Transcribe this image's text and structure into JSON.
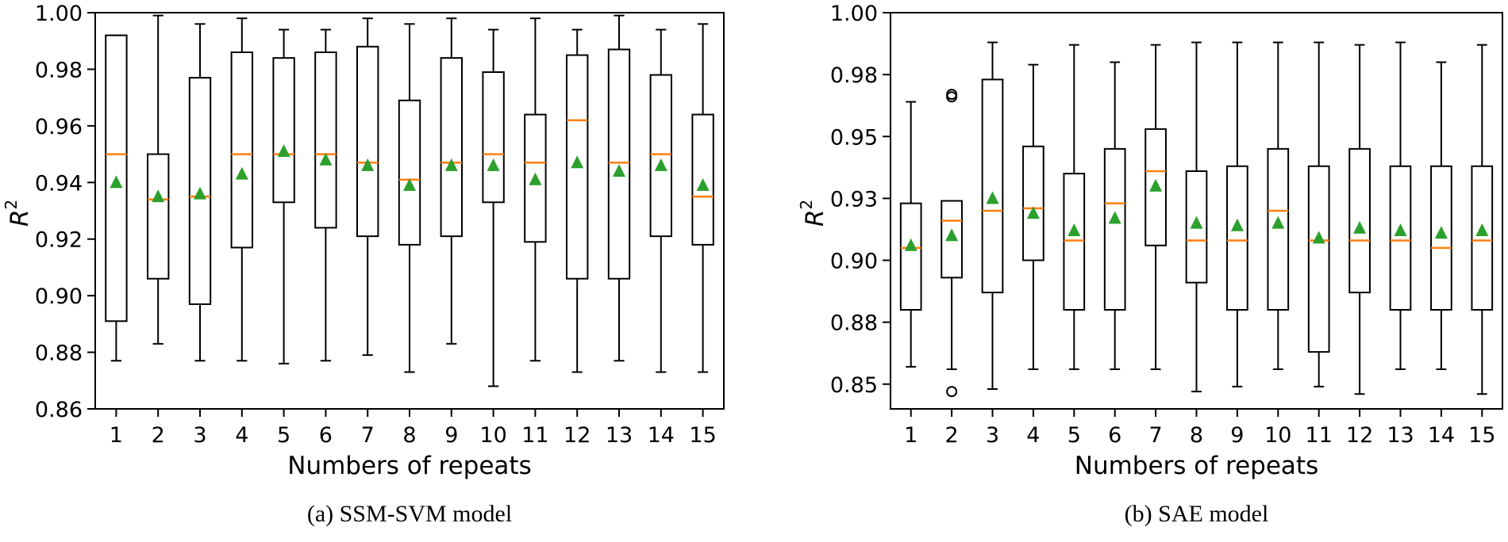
{
  "chart_data": [
    {
      "type": "box",
      "caption": "(a) SSM-SVM model",
      "xlabel": "Numbers of repeats",
      "ylabel_base": "R",
      "ylabel_sup": "2",
      "ylim": [
        0.86,
        1.0
      ],
      "yticks": [
        "0.86",
        "0.88",
        "0.90",
        "0.92",
        "0.94",
        "0.96",
        "0.98",
        "1.00"
      ],
      "categories": [
        "1",
        "2",
        "3",
        "4",
        "5",
        "6",
        "7",
        "8",
        "9",
        "10",
        "11",
        "12",
        "13",
        "14",
        "15"
      ],
      "boxes": [
        {
          "whislo": 0.877,
          "q1": 0.891,
          "med": 0.95,
          "q3": 0.992,
          "whishi": 0.992,
          "mean": 0.94,
          "fliers": []
        },
        {
          "whislo": 0.883,
          "q1": 0.906,
          "med": 0.934,
          "q3": 0.95,
          "whishi": 0.999,
          "mean": 0.935,
          "fliers": []
        },
        {
          "whislo": 0.877,
          "q1": 0.897,
          "med": 0.935,
          "q3": 0.977,
          "whishi": 0.996,
          "mean": 0.936,
          "fliers": []
        },
        {
          "whislo": 0.877,
          "q1": 0.917,
          "med": 0.95,
          "q3": 0.986,
          "whishi": 0.998,
          "mean": 0.943,
          "fliers": []
        },
        {
          "whislo": 0.876,
          "q1": 0.933,
          "med": 0.95,
          "q3": 0.984,
          "whishi": 0.994,
          "mean": 0.951,
          "fliers": []
        },
        {
          "whislo": 0.877,
          "q1": 0.924,
          "med": 0.95,
          "q3": 0.986,
          "whishi": 0.994,
          "mean": 0.948,
          "fliers": []
        },
        {
          "whislo": 0.879,
          "q1": 0.921,
          "med": 0.947,
          "q3": 0.988,
          "whishi": 0.998,
          "mean": 0.946,
          "fliers": []
        },
        {
          "whislo": 0.873,
          "q1": 0.918,
          "med": 0.941,
          "q3": 0.969,
          "whishi": 0.996,
          "mean": 0.939,
          "fliers": []
        },
        {
          "whislo": 0.883,
          "q1": 0.921,
          "med": 0.947,
          "q3": 0.984,
          "whishi": 0.998,
          "mean": 0.946,
          "fliers": []
        },
        {
          "whislo": 0.868,
          "q1": 0.933,
          "med": 0.95,
          "q3": 0.979,
          "whishi": 0.994,
          "mean": 0.946,
          "fliers": []
        },
        {
          "whislo": 0.877,
          "q1": 0.919,
          "med": 0.947,
          "q3": 0.964,
          "whishi": 0.998,
          "mean": 0.941,
          "fliers": []
        },
        {
          "whislo": 0.873,
          "q1": 0.906,
          "med": 0.962,
          "q3": 0.985,
          "whishi": 0.994,
          "mean": 0.947,
          "fliers": []
        },
        {
          "whislo": 0.877,
          "q1": 0.906,
          "med": 0.947,
          "q3": 0.987,
          "whishi": 0.999,
          "mean": 0.944,
          "fliers": []
        },
        {
          "whislo": 0.873,
          "q1": 0.921,
          "med": 0.95,
          "q3": 0.978,
          "whishi": 0.994,
          "mean": 0.946,
          "fliers": []
        },
        {
          "whislo": 0.873,
          "q1": 0.918,
          "med": 0.935,
          "q3": 0.964,
          "whishi": 0.996,
          "mean": 0.939,
          "fliers": []
        }
      ]
    },
    {
      "type": "box",
      "caption": "(b) SAE model",
      "xlabel": "Numbers of repeats",
      "ylabel_base": "R",
      "ylabel_sup": "2",
      "ylim": [
        0.84,
        1.0
      ],
      "yticks": [
        "0.85",
        "0.88",
        "0.90",
        "0.93",
        "0.95",
        "0.98",
        "1.00"
      ],
      "ytick_values": [
        0.85,
        0.875,
        0.9,
        0.925,
        0.95,
        0.975,
        1.0
      ],
      "categories": [
        "1",
        "2",
        "3",
        "4",
        "5",
        "6",
        "7",
        "8",
        "9",
        "10",
        "11",
        "12",
        "13",
        "14",
        "15"
      ],
      "boxes": [
        {
          "whislo": 0.857,
          "q1": 0.88,
          "med": 0.905,
          "q3": 0.923,
          "whishi": 0.964,
          "mean": 0.906,
          "fliers": []
        },
        {
          "whislo": 0.856,
          "q1": 0.893,
          "med": 0.916,
          "q3": 0.924,
          "whishi": 0.924,
          "mean": 0.91,
          "fliers": [
            0.967,
            0.966,
            0.847
          ]
        },
        {
          "whislo": 0.848,
          "q1": 0.887,
          "med": 0.92,
          "q3": 0.973,
          "whishi": 0.988,
          "mean": 0.925,
          "fliers": []
        },
        {
          "whislo": 0.856,
          "q1": 0.9,
          "med": 0.921,
          "q3": 0.946,
          "whishi": 0.979,
          "mean": 0.919,
          "fliers": []
        },
        {
          "whislo": 0.856,
          "q1": 0.88,
          "med": 0.908,
          "q3": 0.935,
          "whishi": 0.987,
          "mean": 0.912,
          "fliers": []
        },
        {
          "whislo": 0.856,
          "q1": 0.88,
          "med": 0.923,
          "q3": 0.945,
          "whishi": 0.98,
          "mean": 0.917,
          "fliers": []
        },
        {
          "whislo": 0.856,
          "q1": 0.906,
          "med": 0.936,
          "q3": 0.953,
          "whishi": 0.987,
          "mean": 0.93,
          "fliers": []
        },
        {
          "whislo": 0.847,
          "q1": 0.891,
          "med": 0.908,
          "q3": 0.936,
          "whishi": 0.988,
          "mean": 0.915,
          "fliers": []
        },
        {
          "whislo": 0.849,
          "q1": 0.88,
          "med": 0.908,
          "q3": 0.938,
          "whishi": 0.988,
          "mean": 0.914,
          "fliers": []
        },
        {
          "whislo": 0.856,
          "q1": 0.88,
          "med": 0.92,
          "q3": 0.945,
          "whishi": 0.988,
          "mean": 0.915,
          "fliers": []
        },
        {
          "whislo": 0.849,
          "q1": 0.863,
          "med": 0.908,
          "q3": 0.938,
          "whishi": 0.988,
          "mean": 0.909,
          "fliers": []
        },
        {
          "whislo": 0.846,
          "q1": 0.887,
          "med": 0.908,
          "q3": 0.945,
          "whishi": 0.987,
          "mean": 0.913,
          "fliers": []
        },
        {
          "whislo": 0.856,
          "q1": 0.88,
          "med": 0.908,
          "q3": 0.938,
          "whishi": 0.988,
          "mean": 0.912,
          "fliers": []
        },
        {
          "whislo": 0.856,
          "q1": 0.88,
          "med": 0.905,
          "q3": 0.938,
          "whishi": 0.98,
          "mean": 0.911,
          "fliers": []
        },
        {
          "whislo": 0.846,
          "q1": 0.88,
          "med": 0.908,
          "q3": 0.938,
          "whishi": 0.987,
          "mean": 0.912,
          "fliers": []
        }
      ]
    }
  ],
  "colors": {
    "box": "#000000",
    "median": "#ff7f0e",
    "mean_marker": "#2ca02c",
    "flier": "#000000",
    "background": "#ffffff"
  }
}
